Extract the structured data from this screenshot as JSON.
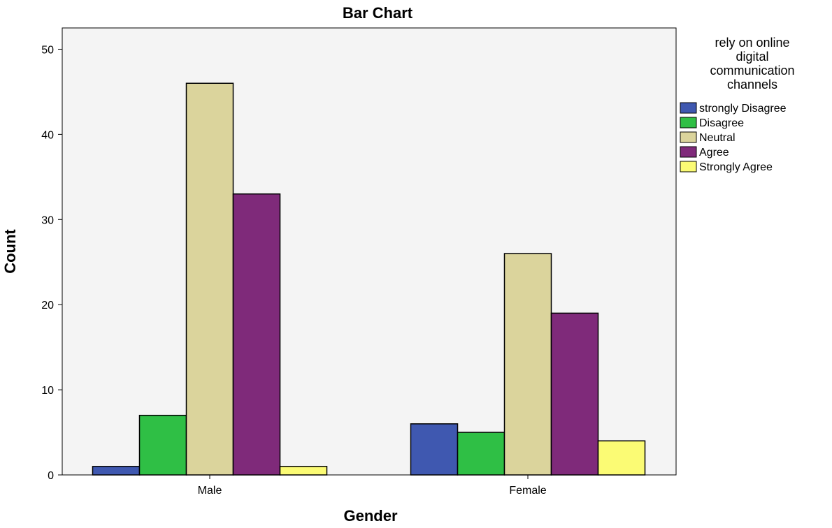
{
  "chart_data": {
    "type": "bar",
    "title": "Bar Chart",
    "xlabel": "Gender",
    "ylabel": "Count",
    "categories": [
      "Male",
      "Female"
    ],
    "ylim": [
      0,
      52.5
    ],
    "yticks": [
      0,
      10,
      20,
      30,
      40,
      50
    ],
    "grid": false,
    "legend_position": "right",
    "legend_title": [
      "rely on online",
      "digital",
      "communication",
      "channels"
    ],
    "series": [
      {
        "name": "strongly Disagree",
        "color": "#3f58b0",
        "values": [
          1,
          6
        ]
      },
      {
        "name": "Disagree",
        "color": "#2fbf45",
        "values": [
          7,
          5
        ]
      },
      {
        "name": "Neutral",
        "color": "#dbd49c",
        "values": [
          46,
          26
        ]
      },
      {
        "name": "Agree",
        "color": "#7f2a7a",
        "values": [
          33,
          19
        ]
      },
      {
        "name": "Strongly Agree",
        "color": "#fbfb74",
        "values": [
          1,
          4
        ]
      }
    ],
    "plot_background": "#f4f4f4"
  }
}
